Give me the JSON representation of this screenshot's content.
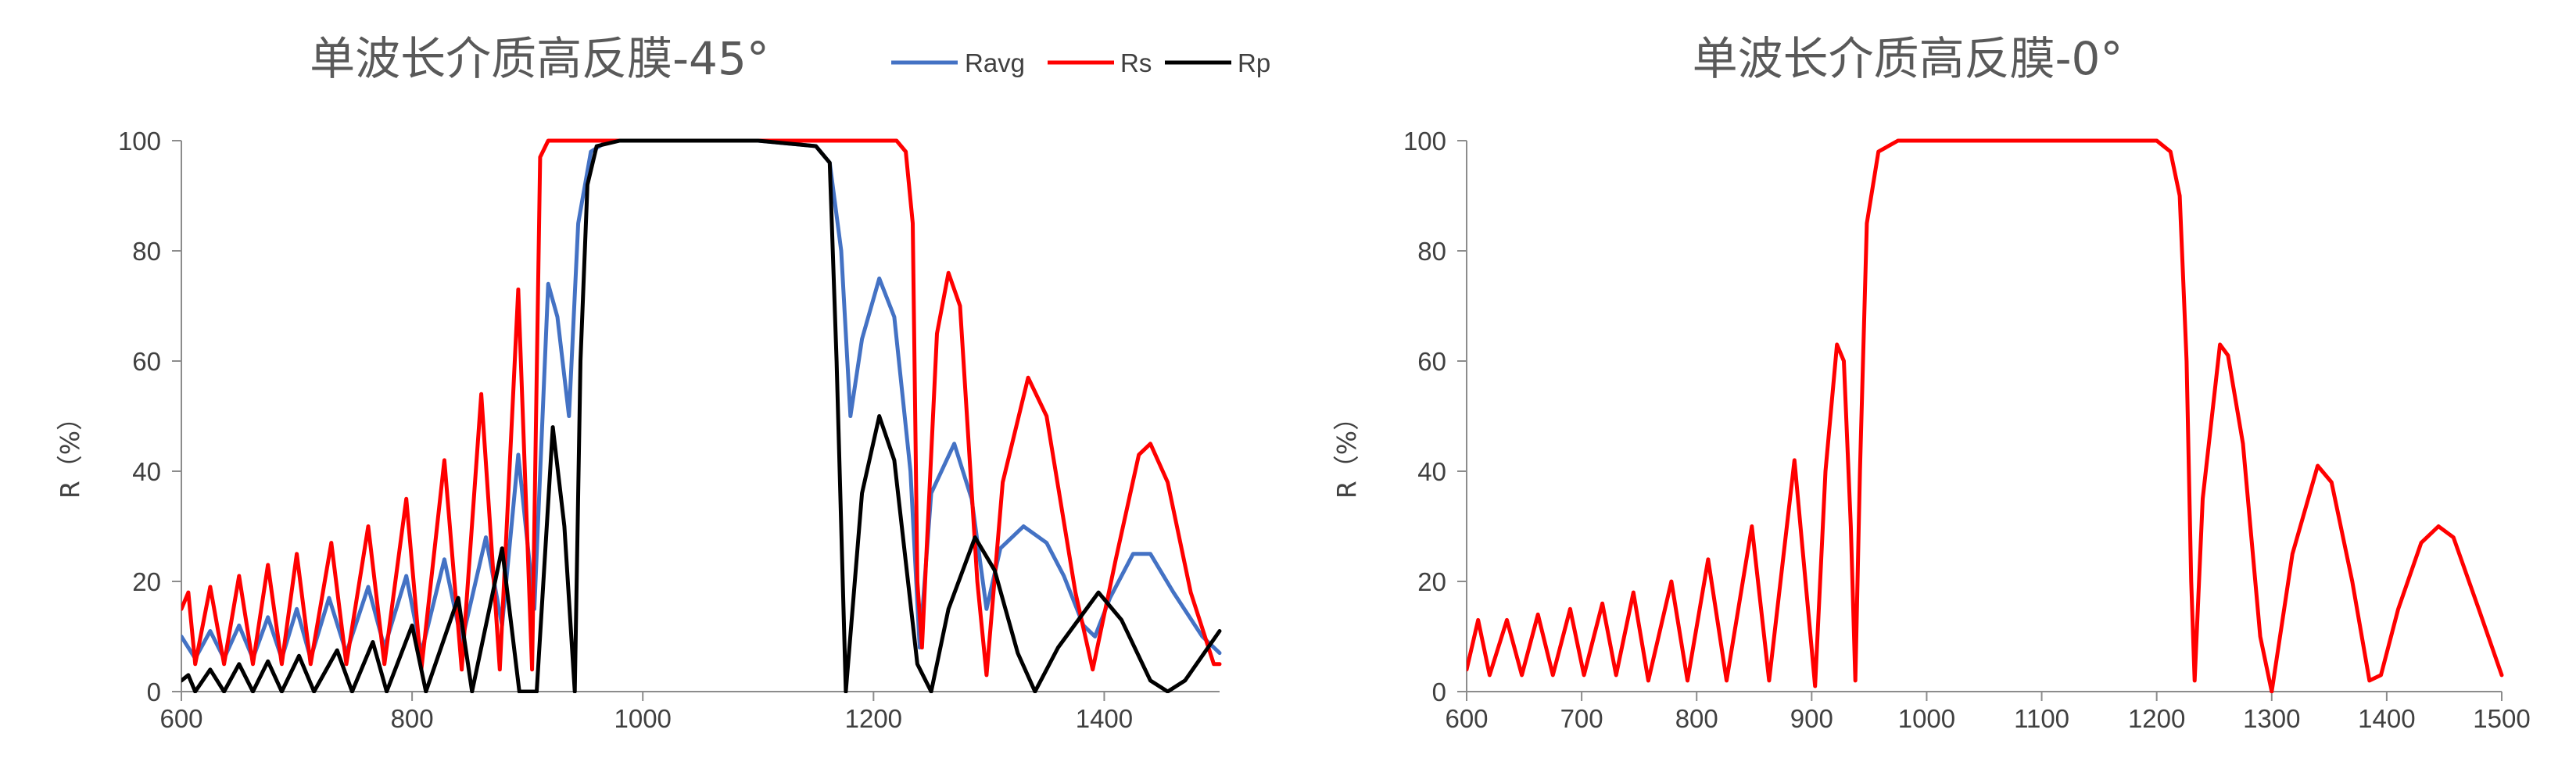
{
  "colors": {
    "Ravg": "#4472c4",
    "Rs": "#ff0000",
    "Rp": "#000000"
  },
  "chart_data": [
    {
      "type": "line",
      "title": "单波长介质高反膜-45°",
      "xlabel": "",
      "ylabel": "R（%）",
      "xlim": [
        600,
        1500
      ],
      "ylim": [
        0,
        100
      ],
      "xticks": [
        600,
        800,
        1000,
        1200,
        1400
      ],
      "yticks": [
        0,
        20,
        40,
        60,
        80,
        100
      ],
      "grid": false,
      "legend": "top-right",
      "series": [
        {
          "name": "Ravg",
          "color": "#4472c4",
          "points": [
            [
              600,
              10
            ],
            [
              612,
              6
            ],
            [
              625,
              11
            ],
            [
              637,
              6
            ],
            [
              650,
              12
            ],
            [
              662,
              6
            ],
            [
              675,
              13.5
            ],
            [
              687,
              6
            ],
            [
              700,
              15
            ],
            [
              712,
              6
            ],
            [
              728,
              17
            ],
            [
              743,
              7
            ],
            [
              762,
              19
            ],
            [
              776,
              8
            ],
            [
              795,
              21
            ],
            [
              808,
              7
            ],
            [
              828,
              24
            ],
            [
              843,
              9
            ],
            [
              864,
              28
            ],
            [
              878,
              12
            ],
            [
              892,
              43
            ],
            [
              906,
              15
            ],
            [
              918,
              74
            ],
            [
              926,
              68
            ],
            [
              936,
              50
            ],
            [
              944,
              85
            ],
            [
              955,
              98
            ],
            [
              970,
              100
            ],
            [
              1000,
              100
            ],
            [
              1100,
              100
            ],
            [
              1150,
              99
            ],
            [
              1162,
              96
            ],
            [
              1172,
              80
            ],
            [
              1180,
              50
            ],
            [
              1190,
              64
            ],
            [
              1205,
              75
            ],
            [
              1218,
              68
            ],
            [
              1232,
              40
            ],
            [
              1240,
              8
            ],
            [
              1250,
              36
            ],
            [
              1270,
              45
            ],
            [
              1285,
              35
            ],
            [
              1298,
              15
            ],
            [
              1310,
              26
            ],
            [
              1330,
              30
            ],
            [
              1350,
              27
            ],
            [
              1365,
              21
            ],
            [
              1382,
              12
            ],
            [
              1392,
              10
            ],
            [
              1405,
              17
            ],
            [
              1425,
              25
            ],
            [
              1440,
              25
            ],
            [
              1460,
              18
            ],
            [
              1485,
              10
            ],
            [
              1500,
              7
            ]
          ]
        },
        {
          "name": "Rs",
          "color": "#ff0000",
          "points": [
            [
              600,
              15
            ],
            [
              606,
              18
            ],
            [
              612,
              5
            ],
            [
              625,
              19
            ],
            [
              637,
              5
            ],
            [
              650,
              21
            ],
            [
              662,
              5
            ],
            [
              675,
              23
            ],
            [
              687,
              5
            ],
            [
              700,
              25
            ],
            [
              712,
              5
            ],
            [
              730,
              27
            ],
            [
              743,
              5
            ],
            [
              762,
              30
            ],
            [
              776,
              5
            ],
            [
              795,
              35
            ],
            [
              808,
              4
            ],
            [
              828,
              42
            ],
            [
              843,
              4
            ],
            [
              860,
              54
            ],
            [
              876,
              4
            ],
            [
              892,
              73
            ],
            [
              904,
              4
            ],
            [
              911,
              97
            ],
            [
              918,
              100
            ],
            [
              1000,
              100
            ],
            [
              1200,
              100
            ],
            [
              1220,
              100
            ],
            [
              1228,
              98
            ],
            [
              1234,
              85
            ],
            [
              1238,
              20
            ],
            [
              1242,
              8
            ],
            [
              1255,
              65
            ],
            [
              1265,
              76
            ],
            [
              1275,
              70
            ],
            [
              1290,
              20
            ],
            [
              1298,
              3
            ],
            [
              1312,
              38
            ],
            [
              1334,
              57
            ],
            [
              1350,
              50
            ],
            [
              1375,
              18
            ],
            [
              1390,
              4
            ],
            [
              1410,
              24
            ],
            [
              1430,
              43
            ],
            [
              1440,
              45
            ],
            [
              1455,
              38
            ],
            [
              1475,
              18
            ],
            [
              1495,
              5
            ],
            [
              1500,
              5
            ]
          ]
        },
        {
          "name": "Rp",
          "color": "#000000",
          "points": [
            [
              600,
              2
            ],
            [
              606,
              3
            ],
            [
              612,
              0
            ],
            [
              625,
              4
            ],
            [
              637,
              0
            ],
            [
              650,
              5
            ],
            [
              662,
              0
            ],
            [
              675,
              5.5
            ],
            [
              687,
              0
            ],
            [
              702,
              6.5
            ],
            [
              715,
              0
            ],
            [
              735,
              7.5
            ],
            [
              748,
              0
            ],
            [
              766,
              9
            ],
            [
              778,
              0
            ],
            [
              800,
              12
            ],
            [
              812,
              0
            ],
            [
              840,
              17
            ],
            [
              852,
              0
            ],
            [
              878,
              26
            ],
            [
              893,
              0
            ],
            [
              908,
              0
            ],
            [
              922,
              48
            ],
            [
              932,
              30
            ],
            [
              941,
              0
            ],
            [
              946,
              60
            ],
            [
              952,
              92
            ],
            [
              960,
              99
            ],
            [
              980,
              100
            ],
            [
              1100,
              100
            ],
            [
              1150,
              99
            ],
            [
              1162,
              96
            ],
            [
              1168,
              60
            ],
            [
              1176,
              0
            ],
            [
              1190,
              36
            ],
            [
              1205,
              50
            ],
            [
              1218,
              42
            ],
            [
              1238,
              5
            ],
            [
              1250,
              0
            ],
            [
              1265,
              15
            ],
            [
              1288,
              28
            ],
            [
              1305,
              22
            ],
            [
              1325,
              7
            ],
            [
              1340,
              0
            ],
            [
              1360,
              8
            ],
            [
              1395,
              18
            ],
            [
              1415,
              13
            ],
            [
              1440,
              2
            ],
            [
              1455,
              0
            ],
            [
              1470,
              2
            ],
            [
              1500,
              11
            ]
          ]
        }
      ]
    },
    {
      "type": "line",
      "title": "单波长介质高反膜-0°",
      "xlabel": "",
      "ylabel": "R（%）",
      "xlim": [
        600,
        1500
      ],
      "ylim": [
        0,
        100
      ],
      "xticks": [
        600,
        700,
        800,
        900,
        1000,
        1100,
        1200,
        1300,
        1400,
        1500
      ],
      "yticks": [
        0,
        20,
        40,
        60,
        80,
        100
      ],
      "grid": false,
      "series": [
        {
          "color": "#ff0000",
          "points": [
            [
              600,
              4
            ],
            [
              610,
              13
            ],
            [
              620,
              3
            ],
            [
              635,
              13
            ],
            [
              648,
              3
            ],
            [
              662,
              14
            ],
            [
              675,
              3
            ],
            [
              690,
              15
            ],
            [
              702,
              3
            ],
            [
              718,
              16
            ],
            [
              730,
              3
            ],
            [
              745,
              18
            ],
            [
              758,
              2
            ],
            [
              778,
              20
            ],
            [
              792,
              2
            ],
            [
              810,
              24
            ],
            [
              826,
              2
            ],
            [
              848,
              30
            ],
            [
              863,
              2
            ],
            [
              885,
              42
            ],
            [
              903,
              1
            ],
            [
              912,
              40
            ],
            [
              922,
              63
            ],
            [
              928,
              60
            ],
            [
              934,
              30
            ],
            [
              938,
              2
            ],
            [
              942,
              40
            ],
            [
              948,
              85
            ],
            [
              958,
              98
            ],
            [
              975,
              100
            ],
            [
              1000,
              100
            ],
            [
              1100,
              100
            ],
            [
              1200,
              100
            ],
            [
              1212,
              98
            ],
            [
              1220,
              90
            ],
            [
              1226,
              60
            ],
            [
              1230,
              20
            ],
            [
              1233,
              2
            ],
            [
              1240,
              35
            ],
            [
              1255,
              63
            ],
            [
              1262,
              61
            ],
            [
              1275,
              45
            ],
            [
              1290,
              10
            ],
            [
              1300,
              0
            ],
            [
              1318,
              25
            ],
            [
              1340,
              41
            ],
            [
              1352,
              38
            ],
            [
              1370,
              20
            ],
            [
              1385,
              2
            ],
            [
              1395,
              3
            ],
            [
              1410,
              15
            ],
            [
              1430,
              27
            ],
            [
              1445,
              30
            ],
            [
              1458,
              28
            ],
            [
              1480,
              15
            ],
            [
              1500,
              3
            ]
          ]
        }
      ]
    }
  ]
}
